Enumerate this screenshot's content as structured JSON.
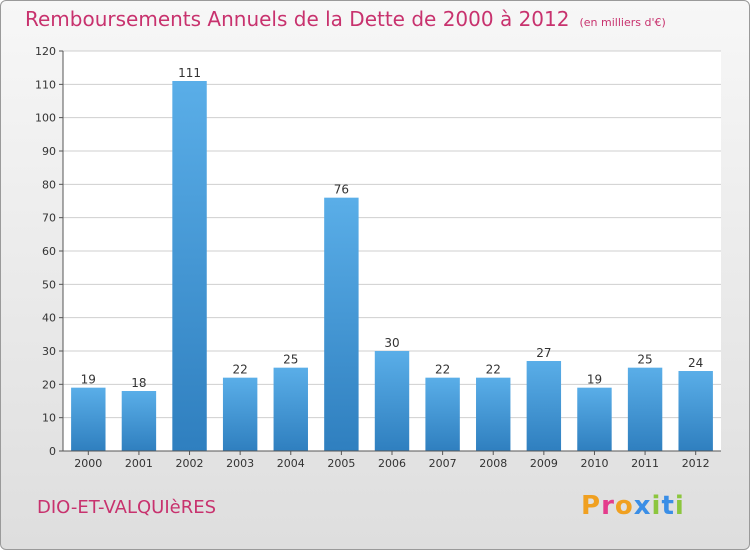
{
  "title": "Remboursements Annuels de la Dette de 2000 à 2012",
  "unit": "(en milliers d'€)",
  "commune": "DIO-ET-VALQUIèRES",
  "logo": [
    "P",
    "r",
    "o",
    "x",
    "i",
    "t",
    "i"
  ],
  "colors": {
    "bar_top": "#5aaee8",
    "bar_bottom": "#2f7fbf",
    "title": "#c8326e"
  },
  "chart_data": {
    "type": "bar",
    "title": "Remboursements Annuels de la Dette de 2000 à 2012",
    "xlabel": "",
    "ylabel": "",
    "categories": [
      "2000",
      "2001",
      "2002",
      "2003",
      "2004",
      "2005",
      "2006",
      "2007",
      "2008",
      "2009",
      "2010",
      "2011",
      "2012"
    ],
    "values": [
      19,
      18,
      111,
      22,
      25,
      76,
      30,
      22,
      22,
      27,
      19,
      25,
      24
    ],
    "ylim": [
      0,
      120
    ],
    "yticks": [
      0,
      10,
      20,
      30,
      40,
      50,
      60,
      70,
      80,
      90,
      100,
      110,
      120
    ],
    "grid": true
  }
}
